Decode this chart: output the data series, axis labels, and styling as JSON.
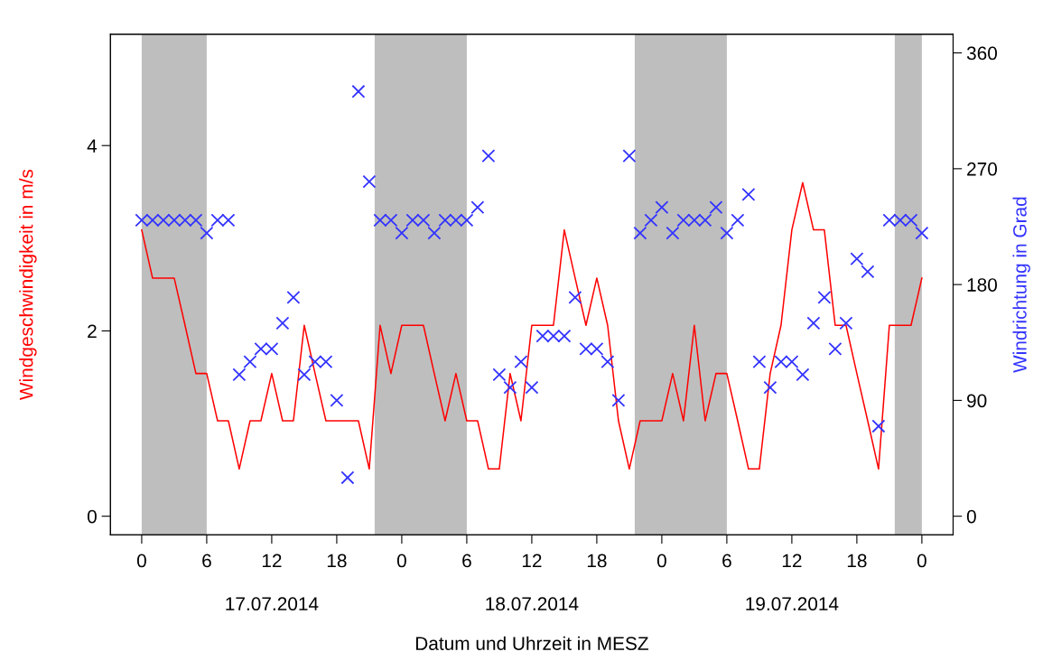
{
  "chart_data": {
    "type": "line",
    "xlabel": "Datum und Uhrzeit in MESZ",
    "ylabel": "Windgeschwindigkeit in m/s",
    "y2label": "Windrichtung in Grad",
    "x": [
      "2014-07-17T00:00",
      "2014-07-17T01:00",
      "2014-07-17T02:00",
      "2014-07-17T03:00",
      "2014-07-17T04:00",
      "2014-07-17T05:00",
      "2014-07-17T06:00",
      "2014-07-17T07:00",
      "2014-07-17T08:00",
      "2014-07-17T09:00",
      "2014-07-17T10:00",
      "2014-07-17T11:00",
      "2014-07-17T12:00",
      "2014-07-17T13:00",
      "2014-07-17T14:00",
      "2014-07-17T15:00",
      "2014-07-17T16:00",
      "2014-07-17T17:00",
      "2014-07-17T18:00",
      "2014-07-17T19:00",
      "2014-07-17T20:00",
      "2014-07-17T21:00",
      "2014-07-17T22:00",
      "2014-07-17T23:00",
      "2014-07-18T00:00",
      "2014-07-18T01:00",
      "2014-07-18T02:00",
      "2014-07-18T03:00",
      "2014-07-18T04:00",
      "2014-07-18T05:00",
      "2014-07-18T06:00",
      "2014-07-18T07:00",
      "2014-07-18T08:00",
      "2014-07-18T09:00",
      "2014-07-18T10:00",
      "2014-07-18T11:00",
      "2014-07-18T12:00",
      "2014-07-18T13:00",
      "2014-07-18T14:00",
      "2014-07-18T15:00",
      "2014-07-18T16:00",
      "2014-07-18T17:00",
      "2014-07-18T18:00",
      "2014-07-18T19:00",
      "2014-07-18T20:00",
      "2014-07-18T21:00",
      "2014-07-18T22:00",
      "2014-07-18T23:00",
      "2014-07-19T00:00",
      "2014-07-19T01:00",
      "2014-07-19T02:00",
      "2014-07-19T03:00",
      "2014-07-19T04:00",
      "2014-07-19T05:00",
      "2014-07-19T06:00",
      "2014-07-19T07:00",
      "2014-07-19T08:00",
      "2014-07-19T09:00",
      "2014-07-19T10:00",
      "2014-07-19T11:00",
      "2014-07-19T12:00",
      "2014-07-19T13:00",
      "2014-07-19T14:00",
      "2014-07-19T15:00",
      "2014-07-19T16:00",
      "2014-07-19T17:00",
      "2014-07-19T18:00",
      "2014-07-19T19:00",
      "2014-07-19T20:00",
      "2014-07-19T21:00",
      "2014-07-19T22:00",
      "2014-07-19T23:00",
      "2014-07-20T00:00"
    ],
    "series": [
      {
        "color": "#ff0000",
        "line_style": "solid",
        "values": [
          3.09,
          2.57,
          2.57,
          2.57,
          2.06,
          1.54,
          1.54,
          1.03,
          1.03,
          0.51,
          1.03,
          1.03,
          1.54,
          1.03,
          1.03,
          2.06,
          1.54,
          1.03,
          1.03,
          1.03,
          1.03,
          0.51,
          2.06,
          1.54,
          2.06,
          2.06,
          2.06,
          1.54,
          1.03,
          1.54,
          1.03,
          1.03,
          0.51,
          0.51,
          1.54,
          1.03,
          2.06,
          2.06,
          2.06,
          3.09,
          2.57,
          2.06,
          2.57,
          2.06,
          1.03,
          0.51,
          1.03,
          1.03,
          1.03,
          1.54,
          1.03,
          2.06,
          1.03,
          1.54,
          1.54,
          1.03,
          0.51,
          0.51,
          1.54,
          2.06,
          3.09,
          3.6,
          3.09,
          3.09,
          2.06,
          2.06,
          1.54,
          1.03,
          0.51,
          2.06,
          2.06,
          2.06,
          2.57
        ]
      },
      {
        "type": "scatter",
        "axis": "y2",
        "marker": "cross",
        "color": "#3333ff",
        "values": [
          230,
          230,
          230,
          230,
          230,
          230,
          220,
          230,
          230,
          110,
          120,
          130,
          130,
          150,
          170,
          110,
          120,
          120,
          90,
          30,
          330,
          260,
          230,
          230,
          220,
          230,
          230,
          220,
          230,
          230,
          230,
          240,
          280,
          110,
          100,
          120,
          100,
          140,
          140,
          140,
          170,
          130,
          130,
          120,
          90,
          280,
          220,
          230,
          240,
          220,
          230,
          230,
          230,
          240,
          220,
          230,
          250,
          120,
          100,
          120,
          120,
          110,
          150,
          170,
          130,
          150,
          200,
          190,
          70,
          230,
          230,
          230,
          220
        ]
      }
    ],
    "xlim": [
      "2014-07-16T21:07",
      "2014-07-20T02:53"
    ],
    "xticks": [
      {
        "value": "2014-07-17T00:00",
        "label": "0"
      },
      {
        "value": "2014-07-17T06:00",
        "label": "6"
      },
      {
        "value": "2014-07-17T12:00",
        "label": "12"
      },
      {
        "value": "2014-07-17T18:00",
        "label": "18"
      },
      {
        "value": "2014-07-18T00:00",
        "label": "0"
      },
      {
        "value": "2014-07-18T06:00",
        "label": "6"
      },
      {
        "value": "2014-07-18T12:00",
        "label": "12"
      },
      {
        "value": "2014-07-18T18:00",
        "label": "18"
      },
      {
        "value": "2014-07-19T00:00",
        "label": "0"
      },
      {
        "value": "2014-07-19T06:00",
        "label": "6"
      },
      {
        "value": "2014-07-19T12:00",
        "label": "12"
      },
      {
        "value": "2014-07-19T18:00",
        "label": "18"
      },
      {
        "value": "2014-07-20T00:00",
        "label": "0"
      }
    ],
    "x2lim": [
      "2014-07-16T21:07",
      "2014-07-20T02:53"
    ],
    "x2ticks": [
      {
        "value": "2014-07-17T12:00",
        "label": "17.07.2014"
      },
      {
        "value": "2014-07-18T12:00",
        "label": "18.07.2014"
      },
      {
        "value": "2014-07-19T12:00",
        "label": "19.07.2014"
      }
    ],
    "ylim": [
      -0.2,
      5.2
    ],
    "yticks": [
      0,
      2,
      4
    ],
    "y2lim": [
      -14.4,
      374.4
    ],
    "y2ticks": [
      0,
      90,
      180,
      270,
      360
    ],
    "bands": [
      {
        "axis": "x",
        "from": "2014-07-17T00:00",
        "to": "2014-07-17T06:00",
        "color": "#bebebe"
      },
      {
        "axis": "x",
        "from": "2014-07-17T21:30",
        "to": "2014-07-18T06:00",
        "color": "#bebebe"
      },
      {
        "axis": "x",
        "from": "2014-07-18T21:30",
        "to": "2014-07-19T06:00",
        "color": "#bebebe"
      },
      {
        "axis": "x",
        "from": "2014-07-19T21:30",
        "to": "2014-07-20T00:00",
        "color": "#bebebe"
      }
    ],
    "grid": false,
    "legend": false
  }
}
